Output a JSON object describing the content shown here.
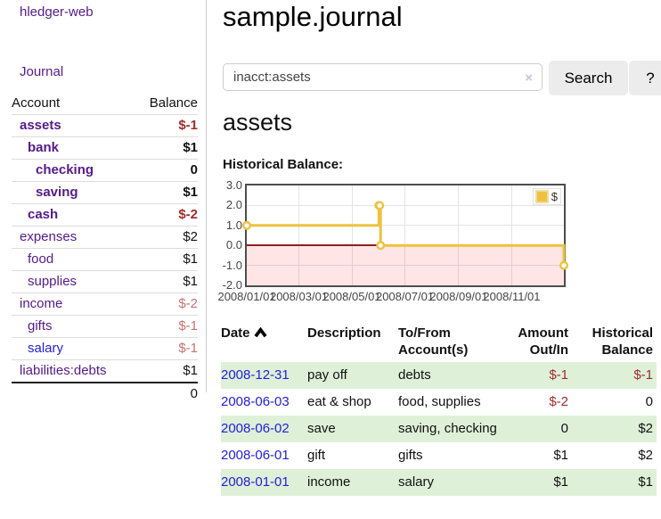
{
  "app": {
    "title": "hledger-web"
  },
  "sidebar": {
    "journal_link": "Journal",
    "table": {
      "headers": {
        "account": "Account",
        "balance": "Balance"
      },
      "rows": [
        {
          "account": "assets",
          "balance": "$-1",
          "depth": 1,
          "bold": true,
          "link": "visited",
          "neg": "strong"
        },
        {
          "account": "bank",
          "balance": "$1",
          "depth": 2,
          "bold": true,
          "link": "visited",
          "neg": "none"
        },
        {
          "account": "checking",
          "balance": "0",
          "depth": 3,
          "bold": true,
          "link": "visited",
          "neg": "none"
        },
        {
          "account": "saving",
          "balance": "$1",
          "depth": 3,
          "bold": true,
          "link": "visited",
          "neg": "none"
        },
        {
          "account": "cash",
          "balance": "$-2",
          "depth": 2,
          "bold": true,
          "link": "visited",
          "neg": "strong"
        },
        {
          "account": "expenses",
          "balance": "$2",
          "depth": 1,
          "bold": false,
          "link": "visited",
          "neg": "none"
        },
        {
          "account": "food",
          "balance": "$1",
          "depth": 2,
          "bold": false,
          "link": "visited",
          "neg": "none"
        },
        {
          "account": "supplies",
          "balance": "$1",
          "depth": 2,
          "bold": false,
          "link": "visited",
          "neg": "none"
        },
        {
          "account": "income",
          "balance": "$-2",
          "depth": 1,
          "bold": false,
          "link": "visited",
          "neg": "soft"
        },
        {
          "account": "gifts",
          "balance": "$-1",
          "depth": 2,
          "bold": false,
          "link": "visited",
          "neg": "soft"
        },
        {
          "account": "salary",
          "balance": "$-1",
          "depth": 2,
          "bold": false,
          "link": "unvisited",
          "neg": "soft"
        },
        {
          "account": "liabilities:debts",
          "balance": "$1",
          "depth": 1,
          "bold": false,
          "link": "visited",
          "neg": "none"
        }
      ],
      "total": "0"
    }
  },
  "main": {
    "title": "sample.journal",
    "search": {
      "value": "inacct:assets",
      "clear_icon": "×",
      "button": "Search",
      "help_button": "?"
    },
    "account_heading": "assets",
    "chart_heading": "Historical Balance:"
  },
  "chart_data": {
    "type": "line",
    "title": "Historical Balance",
    "series": [
      {
        "name": "$",
        "color": "#edc240",
        "step": true,
        "points": [
          [
            "2008-01-01",
            1
          ],
          [
            "2008-06-01",
            2
          ],
          [
            "2008-06-02",
            2
          ],
          [
            "2008-06-03",
            0
          ],
          [
            "2008-12-31",
            -1
          ]
        ]
      }
    ],
    "x_range": [
      "2008-01-01",
      "2008-12-31"
    ],
    "ylim": [
      -2,
      3
    ],
    "y_ticks": [
      "3.0",
      "2.0",
      "1.0",
      "0.0",
      "-1.0",
      "-2.0"
    ],
    "y_tick_values": [
      3,
      2,
      1,
      0,
      -1,
      -2
    ],
    "x_ticks": [
      "2008/01/01",
      "2008/03/01",
      "2008/05/01",
      "2008/07/01",
      "2008/09/01",
      "2008/11/01"
    ],
    "legend": {
      "label": "$",
      "position": "top-right"
    },
    "grid": true,
    "negative_region_color": "rgba(255,0,0,0.10)",
    "zero_line_color": "#8b2020"
  },
  "register": {
    "headers": {
      "date": "Date",
      "description": "Description",
      "account": "To/From Account(s)",
      "amount": "Amount Out/In",
      "balance": "Historical Balance"
    },
    "sort_icon": "chevron-up",
    "rows": [
      {
        "date": "2008-12-31",
        "description": "pay off",
        "accounts": "debts",
        "amount": "$-1",
        "balance": "$-1",
        "amount_neg": true,
        "balance_neg": true,
        "stripe": true
      },
      {
        "date": "2008-06-03",
        "description": "eat & shop",
        "accounts": "food, supplies",
        "amount": "$-2",
        "balance": "0",
        "amount_neg": true,
        "balance_neg": false,
        "stripe": false
      },
      {
        "date": "2008-06-02",
        "description": "save",
        "accounts": "saving, checking",
        "amount": "0",
        "balance": "$2",
        "amount_neg": false,
        "balance_neg": false,
        "stripe": true
      },
      {
        "date": "2008-06-01",
        "description": "gift",
        "accounts": "gifts",
        "amount": "$1",
        "balance": "$2",
        "amount_neg": false,
        "balance_neg": false,
        "stripe": false
      },
      {
        "date": "2008-01-01",
        "description": "income",
        "accounts": "salary",
        "amount": "$1",
        "balance": "$1",
        "amount_neg": false,
        "balance_neg": false,
        "stripe": true
      }
    ]
  },
  "colors": {
    "visited_link": "#551a8b",
    "unvisited_link": "#2320dd",
    "negative_strong": "#a02c2c",
    "negative_soft": "#c87272",
    "row_stripe_green": "#dff0d8",
    "chart_line": "#edc240"
  }
}
